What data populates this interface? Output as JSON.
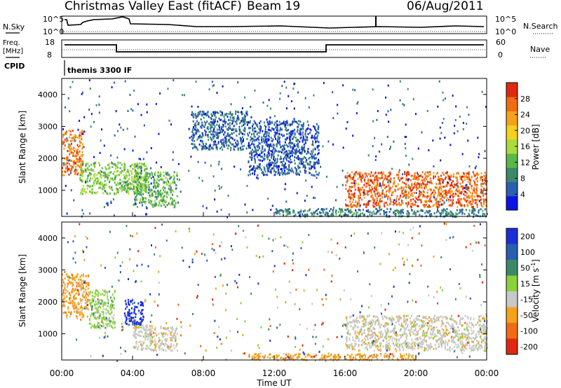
{
  "header": {
    "station": "Christmas Valley East (fitACF)",
    "beam": "Beam 19",
    "date": "06/Aug/2011"
  },
  "top_panels": {
    "nsky": {
      "label": "N.Sky",
      "right_label": "N.Search",
      "left_ticks": [
        "10^5",
        "10^0"
      ],
      "right_ticks": [
        "10^5",
        "10^0"
      ]
    },
    "freq": {
      "label_line1": "Freq.",
      "label_line2": "[MHz]",
      "right_label": "Nave",
      "left_ticks": [
        "18",
        "8"
      ],
      "right_ticks": [
        "60",
        "0"
      ]
    },
    "cpid": {
      "label": "CPID",
      "value": "themis 3300 IF"
    }
  },
  "chart_data": [
    {
      "type": "heatmap",
      "name": "power",
      "xlabel": "",
      "ylabel": "Slant Range [km]",
      "xlim": [
        "00:00",
        "24:00"
      ],
      "ylim": [
        180,
        4500
      ],
      "yticks": [
        1000,
        2000,
        3000,
        4000
      ],
      "colorbar": {
        "label": "Power [dB]",
        "range": [
          0,
          32
        ],
        "ticks": [
          4,
          8,
          12,
          16,
          20,
          24,
          28
        ],
        "colors": [
          "#0a14e6",
          "#2a5fb0",
          "#3a8a6a",
          "#5ab848",
          "#aadb3c",
          "#f2d21c",
          "#f5a21a",
          "#f06b14",
          "#e02810"
        ]
      },
      "regions": [
        {
          "t": [
            0.0,
            1.2
          ],
          "r": [
            1500,
            2900
          ],
          "level": 26
        },
        {
          "t": [
            1.0,
            4.8
          ],
          "r": [
            900,
            1900
          ],
          "level": 14
        },
        {
          "t": [
            4.0,
            6.5
          ],
          "r": [
            500,
            1600
          ],
          "level": 12
        },
        {
          "t": [
            7.3,
            10.5
          ],
          "r": [
            2300,
            3500
          ],
          "level": 6
        },
        {
          "t": [
            10.5,
            14.5
          ],
          "r": [
            1500,
            3200
          ],
          "level": 5
        },
        {
          "t": [
            16.0,
            24.0
          ],
          "r": [
            500,
            1600
          ],
          "level": 27
        },
        {
          "t": [
            12.0,
            24.0
          ],
          "r": [
            200,
            450
          ],
          "level": 8
        }
      ]
    },
    {
      "type": "heatmap",
      "name": "velocity",
      "xlabel": "Time UT",
      "ylabel": "Slant Range [km]",
      "xlim": [
        "00:00",
        "24:00"
      ],
      "ylim": [
        180,
        4500
      ],
      "xticks": [
        "00:00",
        "04:00",
        "08:00",
        "12:00",
        "16:00",
        "20:00",
        "00:00"
      ],
      "yticks": [
        1000,
        2000,
        3000,
        4000
      ],
      "colorbar": {
        "label": "Velocity [m s^-1]",
        "tick_labels": [
          "200",
          "100",
          "50",
          "15",
          "-15",
          "-50",
          "-100",
          "-200"
        ],
        "colors": [
          "#1a2fd8",
          "#2a5fb0",
          "#3a8a6a",
          "#8ad13c",
          "#c8c8c8",
          "#f5a21a",
          "#f06b14",
          "#e02810"
        ]
      },
      "regions": [
        {
          "t": [
            0.0,
            1.5
          ],
          "r": [
            1500,
            2900
          ],
          "level": "-50"
        },
        {
          "t": [
            1.5,
            3.0
          ],
          "r": [
            1200,
            2400
          ],
          "level": "15"
        },
        {
          "t": [
            3.5,
            4.6
          ],
          "r": [
            1300,
            2100
          ],
          "level": "200"
        },
        {
          "t": [
            4.0,
            6.5
          ],
          "r": [
            500,
            1300
          ],
          "level": "-15"
        },
        {
          "t": [
            16.0,
            24.0
          ],
          "r": [
            500,
            1600
          ],
          "level": "-15"
        },
        {
          "t": [
            10.5,
            20.0
          ],
          "r": [
            200,
            400
          ],
          "level": "-50"
        }
      ]
    }
  ]
}
